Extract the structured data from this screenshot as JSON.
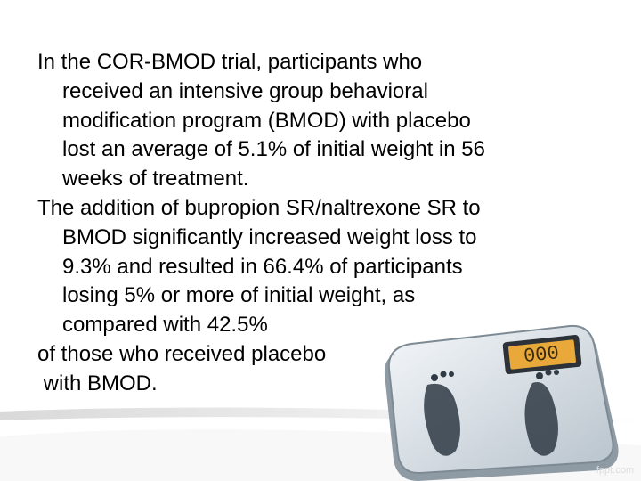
{
  "slide": {
    "paragraphs": [
      {
        "lines": [
          "In the COR-BMOD trial, participants who",
          "received an intensive group behavioral",
          "modification program (BMOD) with placebo",
          "lost an average of 5.1% of initial weight in 56",
          "weeks of treatment."
        ]
      },
      {
        "lines": [
          "The addition of bupropion SR/naltrexone SR to",
          "BMOD significantly increased weight loss to",
          "9.3% and resulted in 66.4% of participants",
          "losing 5% or more of initial weight, as",
          "compared with 42.5%"
        ]
      },
      {
        "lines": [
          "of those who received placebo",
          " with BMOD."
        ]
      }
    ],
    "watermark": "fppt.com"
  }
}
